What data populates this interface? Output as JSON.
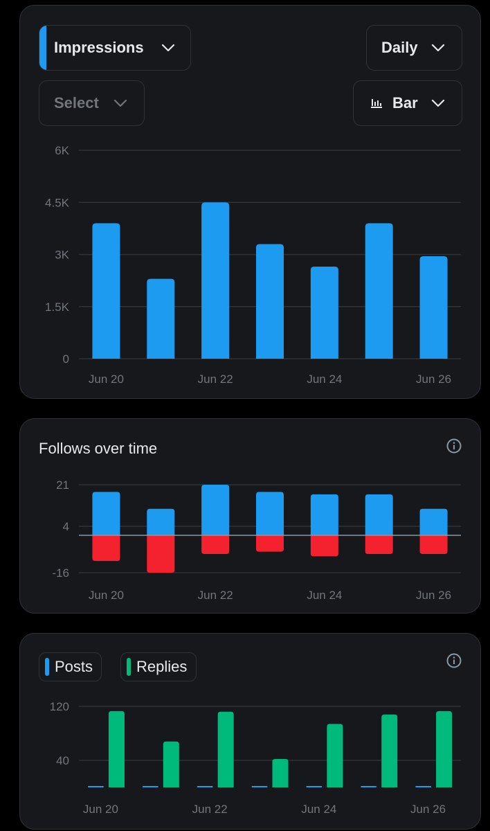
{
  "controls": {
    "metric_label": "Impressions",
    "interval_label": "Daily",
    "select_label": "Select",
    "chart_type_label": "Bar"
  },
  "icons": [
    "chevron-down-icon",
    "bar-chart-icon",
    "info-icon"
  ],
  "colors": {
    "blue": "#1d9bf0",
    "red": "#f4212e",
    "green": "#00ba7c"
  },
  "chart_data": [
    {
      "type": "bar",
      "title": "",
      "categories": [
        "Jun 20",
        "Jun 21",
        "Jun 22",
        "Jun 23",
        "Jun 24",
        "Jun 25",
        "Jun 26"
      ],
      "x_tick_labels": [
        "Jun 20",
        "Jun 22",
        "Jun 24",
        "Jun 26"
      ],
      "y_ticks": [
        0,
        1500,
        3000,
        4500,
        6000
      ],
      "y_tick_labels": [
        "0",
        "1.5K",
        "3K",
        "4.5K",
        "6K"
      ],
      "ylim": [
        0,
        6000
      ],
      "series": [
        {
          "name": "",
          "values": [
            3900,
            2300,
            4500,
            3300,
            2650,
            3900,
            2950
          ]
        }
      ]
    },
    {
      "type": "bar",
      "title": "Follows over time",
      "categories": [
        "Jun 20",
        "Jun 21",
        "Jun 22",
        "Jun 23",
        "Jun 24",
        "Jun 25",
        "Jun 26"
      ],
      "x_tick_labels": [
        "Jun 20",
        "Jun 22",
        "Jun 24",
        "Jun 26"
      ],
      "y_ticks": [
        -16,
        4,
        21
      ],
      "y_tick_labels": [
        "-16",
        "4",
        "21"
      ],
      "ylim": [
        -16,
        21
      ],
      "baseline": 0,
      "series": [
        {
          "name": "",
          "values": [
            18,
            11,
            21,
            18,
            17,
            17,
            11
          ]
        },
        {
          "name": "",
          "values": [
            -11,
            -16,
            -8,
            -7,
            -9,
            -8,
            -8
          ]
        }
      ]
    },
    {
      "type": "bar",
      "title": "",
      "categories": [
        "Jun 20",
        "Jun 21",
        "Jun 22",
        "Jun 23",
        "Jun 24",
        "Jun 25",
        "Jun 26"
      ],
      "x_tick_labels": [
        "Jun 20",
        "Jun 22",
        "Jun 24",
        "Jun 26"
      ],
      "y_ticks": [
        40,
        120
      ],
      "y_tick_labels": [
        "40",
        "120"
      ],
      "ylim": [
        0,
        120
      ],
      "legend": "top-left",
      "series": [
        {
          "name": "Posts",
          "values": [
            1,
            1,
            2,
            1,
            1,
            1,
            0.5
          ]
        },
        {
          "name": "Replies",
          "values": [
            113,
            68,
            112,
            42,
            94,
            108,
            113
          ]
        }
      ]
    }
  ]
}
